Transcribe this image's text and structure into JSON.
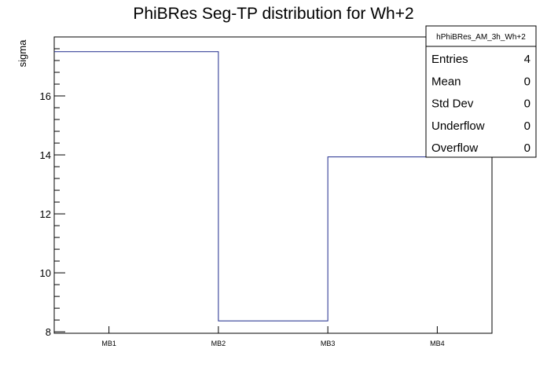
{
  "chart_data": {
    "type": "step",
    "title": "PhiBRes Seg-TP distribution for Wh+2",
    "ylabel": "sigma",
    "xlabel": "",
    "ylim": [
      7.95,
      18.0
    ],
    "y_ticks": [
      8,
      10,
      12,
      14,
      16
    ],
    "y_minor_step": 0.4,
    "bin_edges": [
      0,
      1,
      2,
      3,
      4
    ],
    "categories": [
      "MB1",
      "MB2",
      "MB3",
      "MB4"
    ],
    "values": [
      17.5,
      8.37,
      13.93,
      14.22
    ],
    "step_breaks": [
      {
        "x": 3.0,
        "y": 13.93
      },
      {
        "x": 3.5,
        "y": 14.22
      }
    ],
    "line_color": "#1f2a8c",
    "legend": "top-right",
    "stats": {
      "name": "hPhiBRes_AM_3h_Wh+2",
      "rows": [
        {
          "label": "Entries",
          "value": "4"
        },
        {
          "label": "Mean",
          "value": "0"
        },
        {
          "label": "Std Dev",
          "value": "0"
        },
        {
          "label": "Underflow",
          "value": "0"
        },
        {
          "label": "Overflow",
          "value": "0"
        }
      ]
    }
  }
}
